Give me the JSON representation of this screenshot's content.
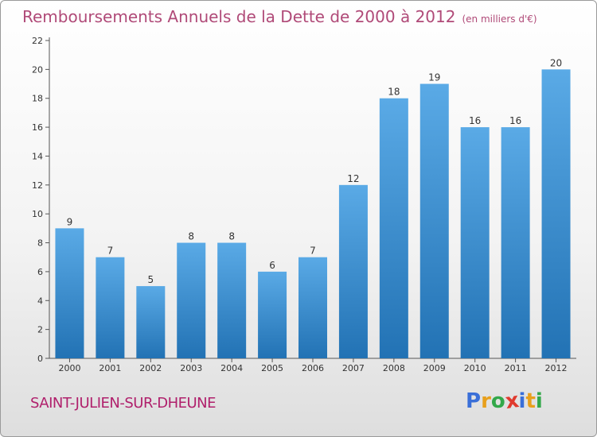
{
  "header": {
    "title": "Remboursements Annuels de la Dette de 2000 à 2012",
    "subtitle": "(en milliers d'€)"
  },
  "commune": "SAINT-JULIEN-SUR-DHEUNE",
  "logo": {
    "letters": [
      "P",
      "r",
      "o",
      "x",
      "i",
      "t",
      "i"
    ],
    "colors": [
      "#3a6fd8",
      "#e8a01c",
      "#33a84a",
      "#e03a2e",
      "#3a6fd8",
      "#e8a01c",
      "#33a84a"
    ]
  },
  "chart_data": {
    "type": "bar",
    "title": "Remboursements Annuels de la Dette de 2000 à 2012",
    "subtitle": "(en milliers d'€)",
    "categories": [
      "2000",
      "2001",
      "2002",
      "2003",
      "2004",
      "2005",
      "2006",
      "2007",
      "2008",
      "2009",
      "2010",
      "2011",
      "2012"
    ],
    "values": [
      9,
      7,
      5,
      8,
      8,
      6,
      7,
      12,
      18,
      19,
      16,
      16,
      20
    ],
    "ylim": [
      0,
      22
    ],
    "yticks": [
      0,
      2,
      4,
      6,
      8,
      10,
      12,
      14,
      16,
      18,
      20,
      22
    ],
    "grid": false,
    "bar_color_top": "#5aaae6",
    "bar_color_bottom": "#2272b4"
  }
}
